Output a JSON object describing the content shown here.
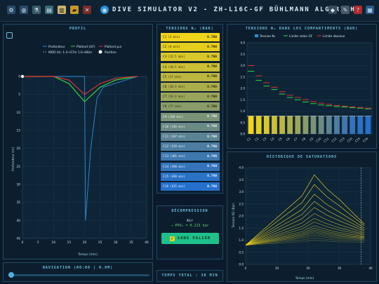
{
  "app_title": "DIVE SIMULATOR V2 - ZH-L16C-GF BÜHLMANN ALGORITHM",
  "toolbar_icons": [
    "gear-icon",
    "globe-icon",
    "flask-icon",
    "document-icon",
    "clipboard-icon",
    "folder-icon",
    "mute-icon"
  ],
  "right_icons": [
    "gamepad-icon",
    "wrench-icon",
    "help-icon",
    "book-icon"
  ],
  "profile": {
    "title": "PROFIL",
    "legend": [
      "Profondeur",
      "Plafond (GF)",
      "Plafond pur",
      "MOD Air: 1.4→57m  1.6→66m",
      "Position"
    ],
    "ylabel": "Profondeur (m)",
    "xlabel": "Temps (min)",
    "yticks": [
      "0",
      "5",
      "10",
      "15",
      "20",
      "25",
      "30",
      "35",
      "40",
      "45"
    ],
    "xticks": [
      "0",
      "5",
      "10",
      "15",
      "20",
      "25",
      "30",
      "35",
      "40"
    ]
  },
  "tensions": {
    "title": "TENSIONS N₂ (BAR)",
    "rows": [
      {
        "name": "C1",
        "half": "(5 min)",
        "value": "0.790"
      },
      {
        "name": "C2",
        "half": "(8 min)",
        "value": "0.790"
      },
      {
        "name": "C3",
        "half": "(12.5 min)",
        "value": "0.790"
      },
      {
        "name": "C4",
        "half": "(18.5 min)",
        "value": "0.790"
      },
      {
        "name": "C5",
        "half": "(27 min)",
        "value": "0.790"
      },
      {
        "name": "C6",
        "half": "(38.3 min)",
        "value": "0.790"
      },
      {
        "name": "C7",
        "half": "(54.3 min)",
        "value": "0.790"
      },
      {
        "name": "C8",
        "half": "(77 min)",
        "value": "0.790"
      },
      {
        "name": "C9",
        "half": "(109 min)",
        "value": "0.790"
      },
      {
        "name": "C10",
        "half": "(146 min)",
        "value": "0.790"
      },
      {
        "name": "C11",
        "half": "(187 min)",
        "value": "0.790"
      },
      {
        "name": "C12",
        "half": "(239 min)",
        "value": "0.790"
      },
      {
        "name": "C13",
        "half": "(305 min)",
        "value": "0.790"
      },
      {
        "name": "C14",
        "half": "(390 min)",
        "value": "0.790"
      },
      {
        "name": "C15",
        "half": "(498 min)",
        "value": "0.790"
      },
      {
        "name": "C16",
        "half": "(635 min)",
        "value": "0.790"
      }
    ]
  },
  "deco": {
    "title": "DÉCOMPRESSION",
    "gas": "Air",
    "ppo2": "→ PPO₂ = 0.213 bar",
    "button": "SANS PALIER",
    "total": "TEMPS TOTAL : 38 MIN"
  },
  "navigation": {
    "title": "NAVIGATION (00:00 | 0.0M)",
    "position": 0
  },
  "compartments_chart": {
    "title": "TENSIONS N₂ DANS LES COMPARTIMENTS (BAR)",
    "legend": [
      "Tension N₂",
      "Limite selon GF",
      "Limite absolue"
    ],
    "pn2_label": "PN₂ amb. 0.790 bar"
  },
  "saturation_chart": {
    "title": "HISTORIQUE DE SATURATIONS",
    "ylabel": "Tension N2 (Bar)",
    "xlabel": "Temps (min)"
  },
  "colors": {
    "accent": "#2e8fd6",
    "gf": "#2ed63a",
    "pure": "#e03030",
    "yellow": "#f2d41a"
  },
  "chart_data": [
    {
      "type": "line",
      "title": "PROFIL",
      "xlabel": "Temps (min)",
      "ylabel": "Profondeur (m)",
      "xlim": [
        0,
        40
      ],
      "ylim": [
        45,
        0
      ],
      "series": [
        {
          "name": "Profondeur",
          "x": [
            0,
            20,
            20.3,
            22,
            24,
            26,
            37
          ],
          "y": [
            0,
            0,
            40,
            20,
            6,
            3,
            0
          ]
        },
        {
          "name": "Plafond (GF)",
          "x": [
            0,
            5,
            10,
            15,
            20,
            25,
            30,
            37
          ],
          "y": [
            0,
            0,
            0,
            2,
            7,
            3,
            1,
            0
          ]
        },
        {
          "name": "Plafond pur",
          "x": [
            0,
            5,
            10,
            15,
            20,
            25,
            30,
            37
          ],
          "y": [
            0,
            0,
            0,
            1,
            5,
            2,
            0.5,
            0
          ]
        }
      ]
    },
    {
      "type": "bar",
      "title": "TENSIONS N₂ DANS LES COMPARTIMENTS (BAR)",
      "categories": [
        "C1",
        "C2",
        "C3",
        "C4",
        "C5",
        "C6",
        "C7",
        "C8",
        "C9",
        "C10",
        "C11",
        "C12",
        "C13",
        "C14",
        "C15",
        "C16"
      ],
      "ylim": [
        0,
        4
      ],
      "series": [
        {
          "name": "Tension N₂",
          "values": [
            0.79,
            0.79,
            0.79,
            0.79,
            0.79,
            0.79,
            0.79,
            0.79,
            0.79,
            0.79,
            0.79,
            0.79,
            0.79,
            0.79,
            0.79,
            0.79
          ]
        },
        {
          "name": "Limite selon GF",
          "values": [
            2.75,
            2.35,
            2.1,
            1.95,
            1.75,
            1.6,
            1.5,
            1.4,
            1.33,
            1.27,
            1.24,
            1.2,
            1.18,
            1.15,
            1.13,
            1.1
          ]
        },
        {
          "name": "Limite absolue",
          "values": [
            3.0,
            2.55,
            2.25,
            2.05,
            1.85,
            1.7,
            1.6,
            1.5,
            1.42,
            1.35,
            1.3,
            1.25,
            1.22,
            1.19,
            1.16,
            1.13
          ]
        }
      ]
    },
    {
      "type": "line",
      "title": "HISTORIQUE DE SATURATIONS",
      "xlabel": "Temps (min)",
      "ylabel": "Tension N2 (Bar)",
      "xlim": [
        0,
        40
      ],
      "ylim": [
        0,
        4
      ],
      "peaks": [
        3.7,
        3.3,
        2.9,
        2.6,
        2.35,
        2.1,
        1.9,
        1.75,
        1.6,
        1.5,
        1.42,
        1.35,
        1.28,
        1.2,
        1.1,
        1.0
      ]
    }
  ]
}
